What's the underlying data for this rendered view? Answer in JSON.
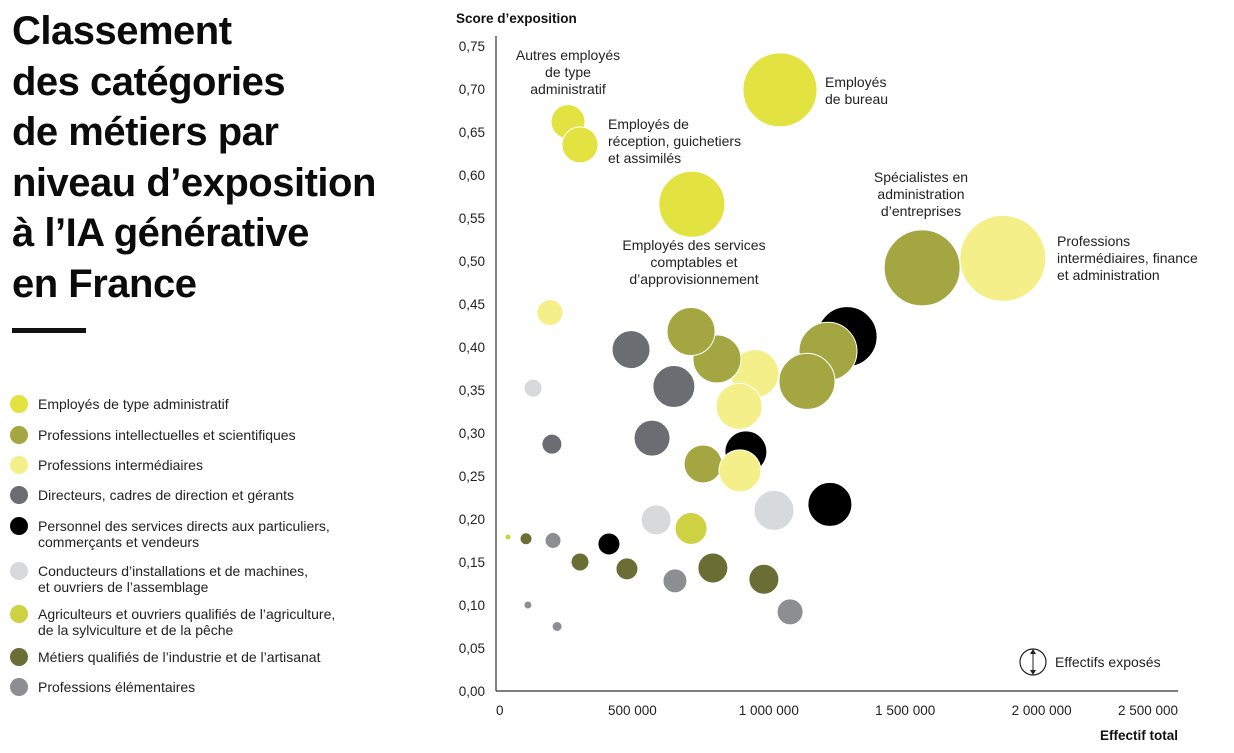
{
  "title": {
    "lines": [
      "Classement",
      "des catégories",
      "de métiers par",
      "niveau d’exposition",
      "à l’IA générative",
      "en France"
    ]
  },
  "legend": [
    {
      "label": [
        "Employés de type administratif"
      ],
      "color": "#e2e241"
    },
    {
      "label": [
        "Professions intellectuelles et scientifiques"
      ],
      "color": "#a4a642"
    },
    {
      "label": [
        "Professions intermédiaires"
      ],
      "color": "#f4ef88"
    },
    {
      "label": [
        "Directeurs, cadres de direction et gérants"
      ],
      "color": "#6b6d72"
    },
    {
      "label": [
        "Personnel des services directs aux particuliers,",
        "commerçants et vendeurs"
      ],
      "color": "#000000"
    },
    {
      "label": [
        "Conducteurs d’installations et de machines,",
        "et ouvriers de l’assemblage"
      ],
      "color": "#d8d9db"
    },
    {
      "label": [
        "Agriculteurs et ouvriers qualifiés de l’agriculture,",
        "de la sylviculture et de la pêche"
      ],
      "color": "#cdd142"
    },
    {
      "label": [
        "Métiers qualifiés de l’industrie et de l’artisanat"
      ],
      "color": "#6a6e35"
    },
    {
      "label": [
        "Professions élémentaires"
      ],
      "color": "#8d8e92"
    }
  ],
  "chart_data": {
    "type": "scatter",
    "subtype": "bubble",
    "ylabel": "Score d’exposition",
    "xlabel": "Effectif total",
    "size_label": "Effectifs exposés",
    "size_units": "relative",
    "xlim": [
      0,
      2500000
    ],
    "ylim": [
      0,
      0.75
    ],
    "xticks": [
      0,
      500000,
      1000000,
      1500000,
      2000000,
      2500000
    ],
    "xtick_labels": [
      "0",
      "500 000",
      "1 000 000",
      "1 500 000",
      "2 000 000",
      "2 500 000"
    ],
    "yticks": [
      0,
      0.05,
      0.1,
      0.15,
      0.2,
      0.25,
      0.3,
      0.35,
      0.4,
      0.45,
      0.5,
      0.55,
      0.6,
      0.65,
      0.7,
      0.75
    ],
    "ytick_labels": [
      "0,00",
      "0,05",
      "0,10",
      "0,15",
      "0,20",
      "0,25",
      "0,30",
      "0,35",
      "0,40",
      "0,45",
      "0,50",
      "0,55",
      "0,60",
      "0,65",
      "0,70",
      "0,75"
    ],
    "grid": false,
    "points": [
      {
        "cat": 0,
        "x": 1041000,
        "y": 0.699,
        "size": 685000
      },
      {
        "cat": 0,
        "x": 264000,
        "y": 0.662,
        "size": 144500
      },
      {
        "cat": 0,
        "x": 308000,
        "y": 0.635,
        "size": 162000
      },
      {
        "cat": 0,
        "x": 718000,
        "y": 0.566,
        "size": 544500
      },
      {
        "cat": 1,
        "x": 1562000,
        "y": 0.492,
        "size": 722000
      },
      {
        "cat": 2,
        "x": 1858000,
        "y": 0.503,
        "size": 924500
      },
      {
        "cat": 2,
        "x": 198000,
        "y": 0.44,
        "size": 84500
      },
      {
        "cat": 3,
        "x": 495000,
        "y": 0.397,
        "size": 180500
      },
      {
        "cat": 2,
        "x": 949000,
        "y": 0.369,
        "size": 288000
      },
      {
        "cat": 1,
        "x": 810000,
        "y": 0.386,
        "size": 288000
      },
      {
        "cat": 1,
        "x": 715000,
        "y": 0.418,
        "size": 288000
      },
      {
        "cat": 4,
        "x": 1287000,
        "y": 0.412,
        "size": 450000
      },
      {
        "cat": 1,
        "x": 1217000,
        "y": 0.395,
        "size": 420500
      },
      {
        "cat": 1,
        "x": 1140000,
        "y": 0.36,
        "size": 392000
      },
      {
        "cat": 2,
        "x": 891000,
        "y": 0.331,
        "size": 264500
      },
      {
        "cat": 5,
        "x": 136000,
        "y": 0.352,
        "size": 40500
      },
      {
        "cat": 3,
        "x": 652000,
        "y": 0.354,
        "size": 220500
      },
      {
        "cat": 3,
        "x": 205000,
        "y": 0.287,
        "size": 50000
      },
      {
        "cat": 3,
        "x": 572000,
        "y": 0.294,
        "size": 162000
      },
      {
        "cat": 4,
        "x": 916000,
        "y": 0.278,
        "size": 220500
      },
      {
        "cat": 1,
        "x": 759000,
        "y": 0.264,
        "size": 180500
      },
      {
        "cat": 2,
        "x": 894000,
        "y": 0.256,
        "size": 220500
      },
      {
        "cat": 5,
        "x": 1019000,
        "y": 0.21,
        "size": 200000
      },
      {
        "cat": 4,
        "x": 1224000,
        "y": 0.217,
        "size": 242000
      },
      {
        "cat": 5,
        "x": 587000,
        "y": 0.199,
        "size": 112500
      },
      {
        "cat": 6,
        "x": 715000,
        "y": 0.189,
        "size": 128000
      },
      {
        "cat": 6,
        "x": 44000,
        "y": 0.179,
        "size": 4500
      },
      {
        "cat": 7,
        "x": 110000,
        "y": 0.177,
        "size": 18000
      },
      {
        "cat": 8,
        "x": 209000,
        "y": 0.175,
        "size": 32000
      },
      {
        "cat": 4,
        "x": 414000,
        "y": 0.171,
        "size": 60500
      },
      {
        "cat": 7,
        "x": 308000,
        "y": 0.15,
        "size": 40500
      },
      {
        "cat": 7,
        "x": 480000,
        "y": 0.142,
        "size": 60500
      },
      {
        "cat": 8,
        "x": 656000,
        "y": 0.128,
        "size": 72000
      },
      {
        "cat": 7,
        "x": 795000,
        "y": 0.143,
        "size": 112500
      },
      {
        "cat": 7,
        "x": 982000,
        "y": 0.13,
        "size": 112500
      },
      {
        "cat": 8,
        "x": 1078000,
        "y": 0.092,
        "size": 84500
      },
      {
        "cat": 8,
        "x": 117000,
        "y": 0.1,
        "size": 8000
      },
      {
        "cat": 8,
        "x": 224000,
        "y": 0.075,
        "size": 12500
      }
    ],
    "annotations": [
      {
        "lines": [
          "Autres employés",
          "de type",
          "administratif"
        ]
      },
      {
        "lines": [
          "Employés de",
          "réception, guichetiers",
          "et assimilés"
        ]
      },
      {
        "lines": [
          "Employés",
          "de bureau"
        ]
      },
      {
        "lines": [
          "Spécialistes en",
          "administration",
          "d’entreprises"
        ]
      },
      {
        "lines": [
          "Employés des services",
          "comptables et",
          "d’approvisionnement"
        ]
      },
      {
        "lines": [
          "Professions",
          "intermédiaires, finance",
          "et administration"
        ]
      }
    ]
  }
}
